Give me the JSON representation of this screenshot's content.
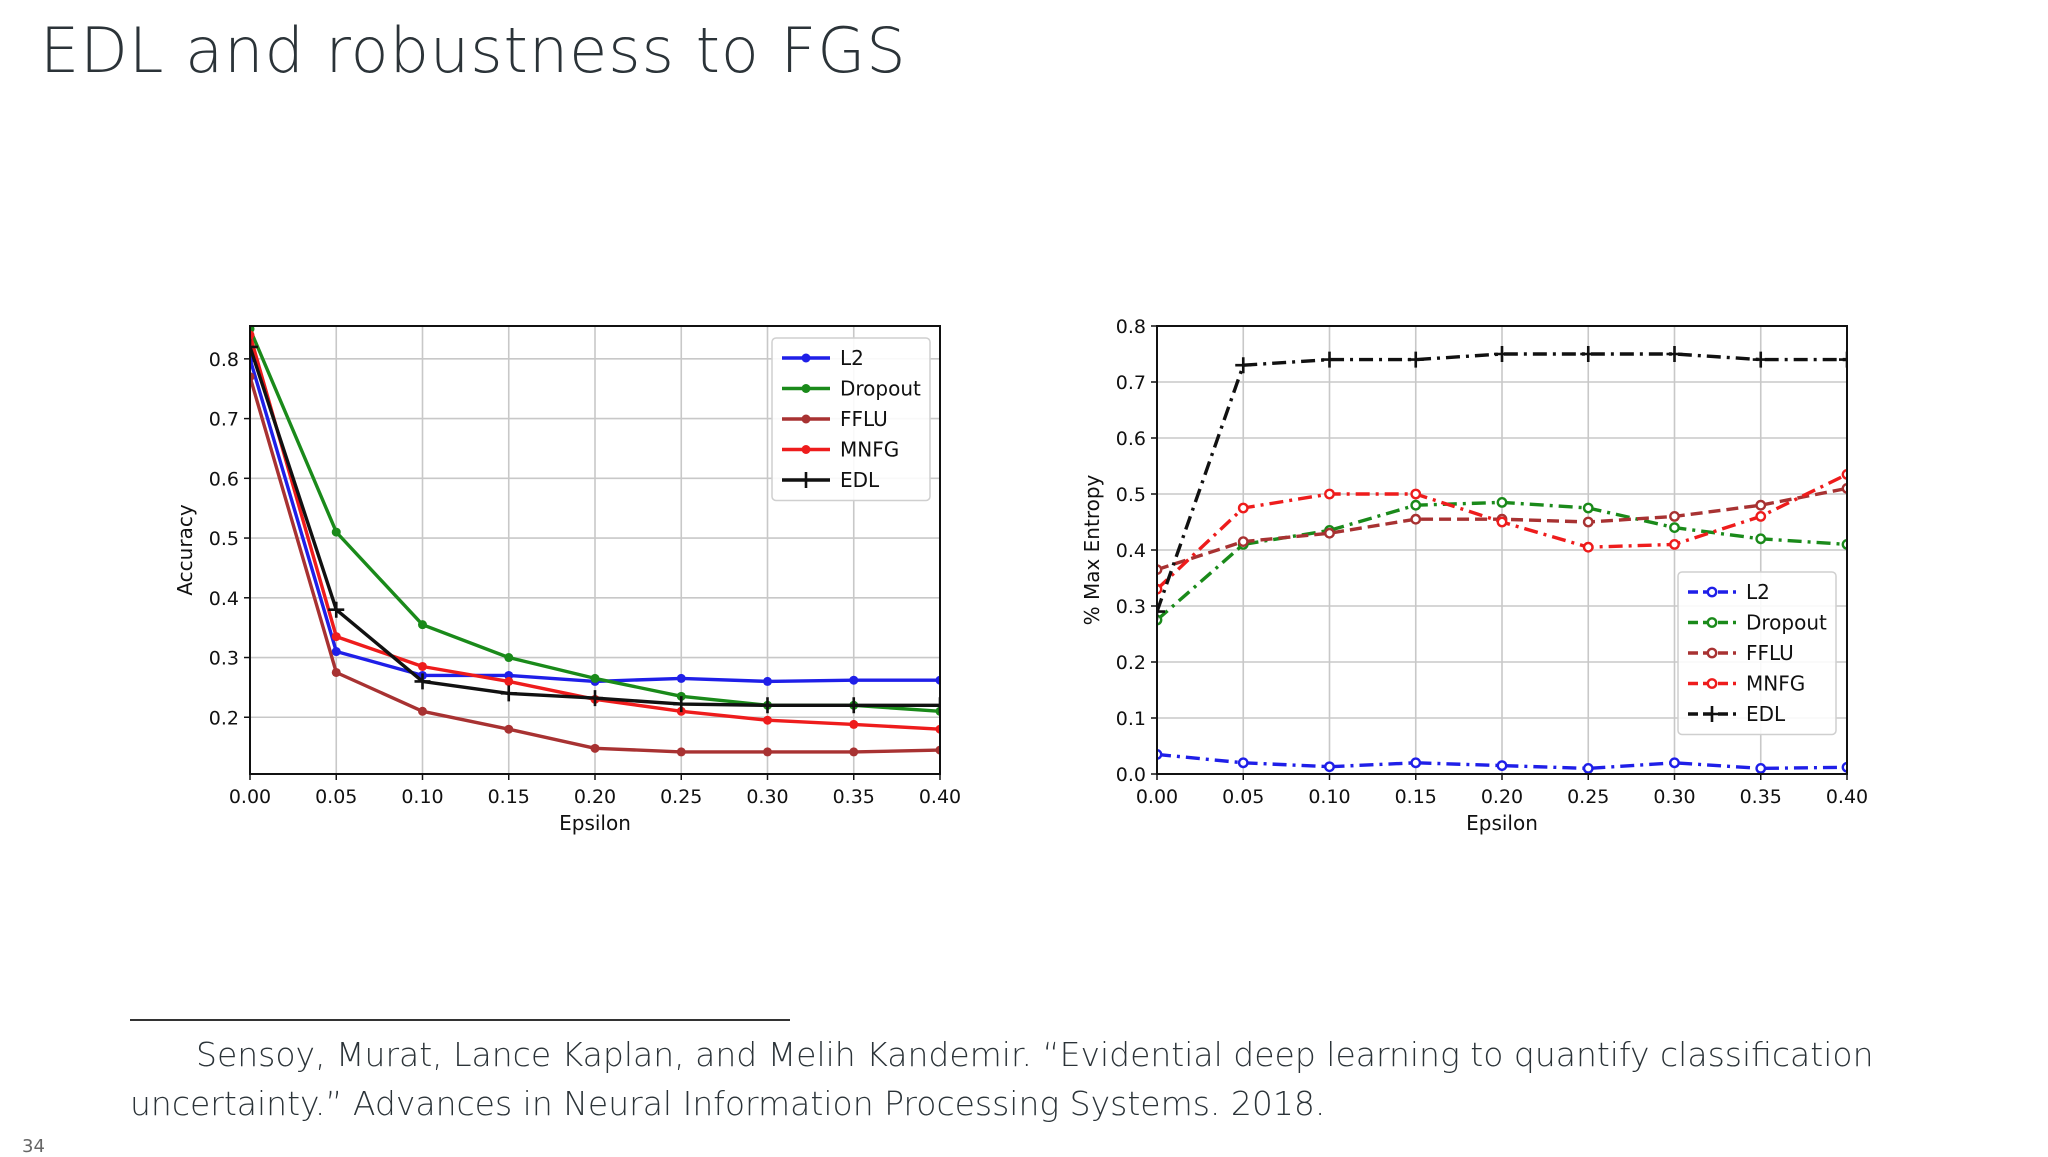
{
  "slide": {
    "title": "EDL and robustness to FGS",
    "footnote": "Sensoy, Murat, Lance Kaplan, and Melih Kandemir. “Evidential deep learning to quantify classification uncertainty.” Advances in Neural Information Processing Systems. 2018.",
    "page_number": "34"
  },
  "chart_data": [
    {
      "type": "line",
      "title": "",
      "xlabel": "Epsilon",
      "ylabel": "Accuracy",
      "xlim": [
        0.0,
        0.4
      ],
      "ylim": [
        0.105,
        0.855
      ],
      "xticks": [
        0.0,
        0.05,
        0.1,
        0.15,
        0.2,
        0.25,
        0.3,
        0.35,
        0.4
      ],
      "yticks": [
        0.2,
        0.3,
        0.4,
        0.5,
        0.6,
        0.7,
        0.8
      ],
      "xtick_labels": [
        "0.00",
        "0.05",
        "0.10",
        "0.15",
        "0.20",
        "0.25",
        "0.30",
        "0.35",
        "0.40"
      ],
      "ytick_labels": [
        "0.2",
        "0.3",
        "0.4",
        "0.5",
        "0.6",
        "0.7",
        "0.8"
      ],
      "grid": true,
      "legend": "top-right",
      "x": [
        0.0,
        0.05,
        0.1,
        0.15,
        0.2,
        0.25,
        0.3,
        0.35,
        0.4
      ],
      "series": [
        {
          "name": "L2",
          "color": "#1f1fe8",
          "style": "solid",
          "marker": "dot",
          "values": [
            0.8,
            0.31,
            0.27,
            0.27,
            0.26,
            0.265,
            0.26,
            0.262,
            0.262
          ]
        },
        {
          "name": "Dropout",
          "color": "#1a8a1a",
          "style": "solid",
          "marker": "dot",
          "values": [
            0.85,
            0.51,
            0.355,
            0.3,
            0.265,
            0.235,
            0.22,
            0.22,
            0.21
          ]
        },
        {
          "name": "FFLU",
          "color": "#a83232",
          "style": "solid",
          "marker": "dot",
          "values": [
            0.77,
            0.275,
            0.21,
            0.18,
            0.148,
            0.142,
            0.142,
            0.142,
            0.145
          ]
        },
        {
          "name": "MNFG",
          "color": "#ee1c1c",
          "style": "solid",
          "marker": "dot",
          "values": [
            0.84,
            0.335,
            0.285,
            0.26,
            0.23,
            0.21,
            0.195,
            0.188,
            0.18
          ]
        },
        {
          "name": "EDL",
          "color": "#111111",
          "style": "solid",
          "marker": "plus",
          "values": [
            0.82,
            0.38,
            0.26,
            0.24,
            0.232,
            0.222,
            0.22,
            0.22,
            0.22
          ]
        }
      ]
    },
    {
      "type": "line",
      "title": "",
      "xlabel": "Epsilon",
      "ylabel": "% Max Entropy",
      "xlim": [
        0.0,
        0.4
      ],
      "ylim": [
        0.0,
        0.8
      ],
      "xticks": [
        0.0,
        0.05,
        0.1,
        0.15,
        0.2,
        0.25,
        0.3,
        0.35,
        0.4
      ],
      "yticks": [
        0.0,
        0.1,
        0.2,
        0.3,
        0.4,
        0.5,
        0.6,
        0.7,
        0.8
      ],
      "xtick_labels": [
        "0.00",
        "0.05",
        "0.10",
        "0.15",
        "0.20",
        "0.25",
        "0.30",
        "0.35",
        "0.40"
      ],
      "ytick_labels": [
        "0.0",
        "0.1",
        "0.2",
        "0.3",
        "0.4",
        "0.5",
        "0.6",
        "0.7",
        "0.8"
      ],
      "grid": true,
      "legend": "center-right",
      "x": [
        0.0,
        0.05,
        0.1,
        0.15,
        0.2,
        0.25,
        0.3,
        0.35,
        0.4
      ],
      "series": [
        {
          "name": "L2",
          "color": "#1f1fe8",
          "style": "dashdot",
          "marker": "circle",
          "values": [
            0.035,
            0.02,
            0.013,
            0.02,
            0.015,
            0.01,
            0.02,
            0.01,
            0.012
          ]
        },
        {
          "name": "Dropout",
          "color": "#1a8a1a",
          "style": "dashdot",
          "marker": "circle",
          "values": [
            0.275,
            0.41,
            0.435,
            0.48,
            0.485,
            0.475,
            0.44,
            0.42,
            0.41
          ]
        },
        {
          "name": "FFLU",
          "color": "#a83232",
          "style": "dashed",
          "marker": "circle",
          "values": [
            0.365,
            0.415,
            0.43,
            0.455,
            0.455,
            0.45,
            0.46,
            0.48,
            0.51
          ]
        },
        {
          "name": "MNFG",
          "color": "#ee1c1c",
          "style": "dashdot",
          "marker": "circle",
          "values": [
            0.33,
            0.475,
            0.5,
            0.5,
            0.45,
            0.405,
            0.41,
            0.46,
            0.535
          ]
        },
        {
          "name": "EDL",
          "color": "#111111",
          "style": "dashdot",
          "marker": "plus",
          "values": [
            0.29,
            0.73,
            0.74,
            0.74,
            0.75,
            0.75,
            0.75,
            0.74,
            0.74
          ]
        }
      ]
    }
  ]
}
